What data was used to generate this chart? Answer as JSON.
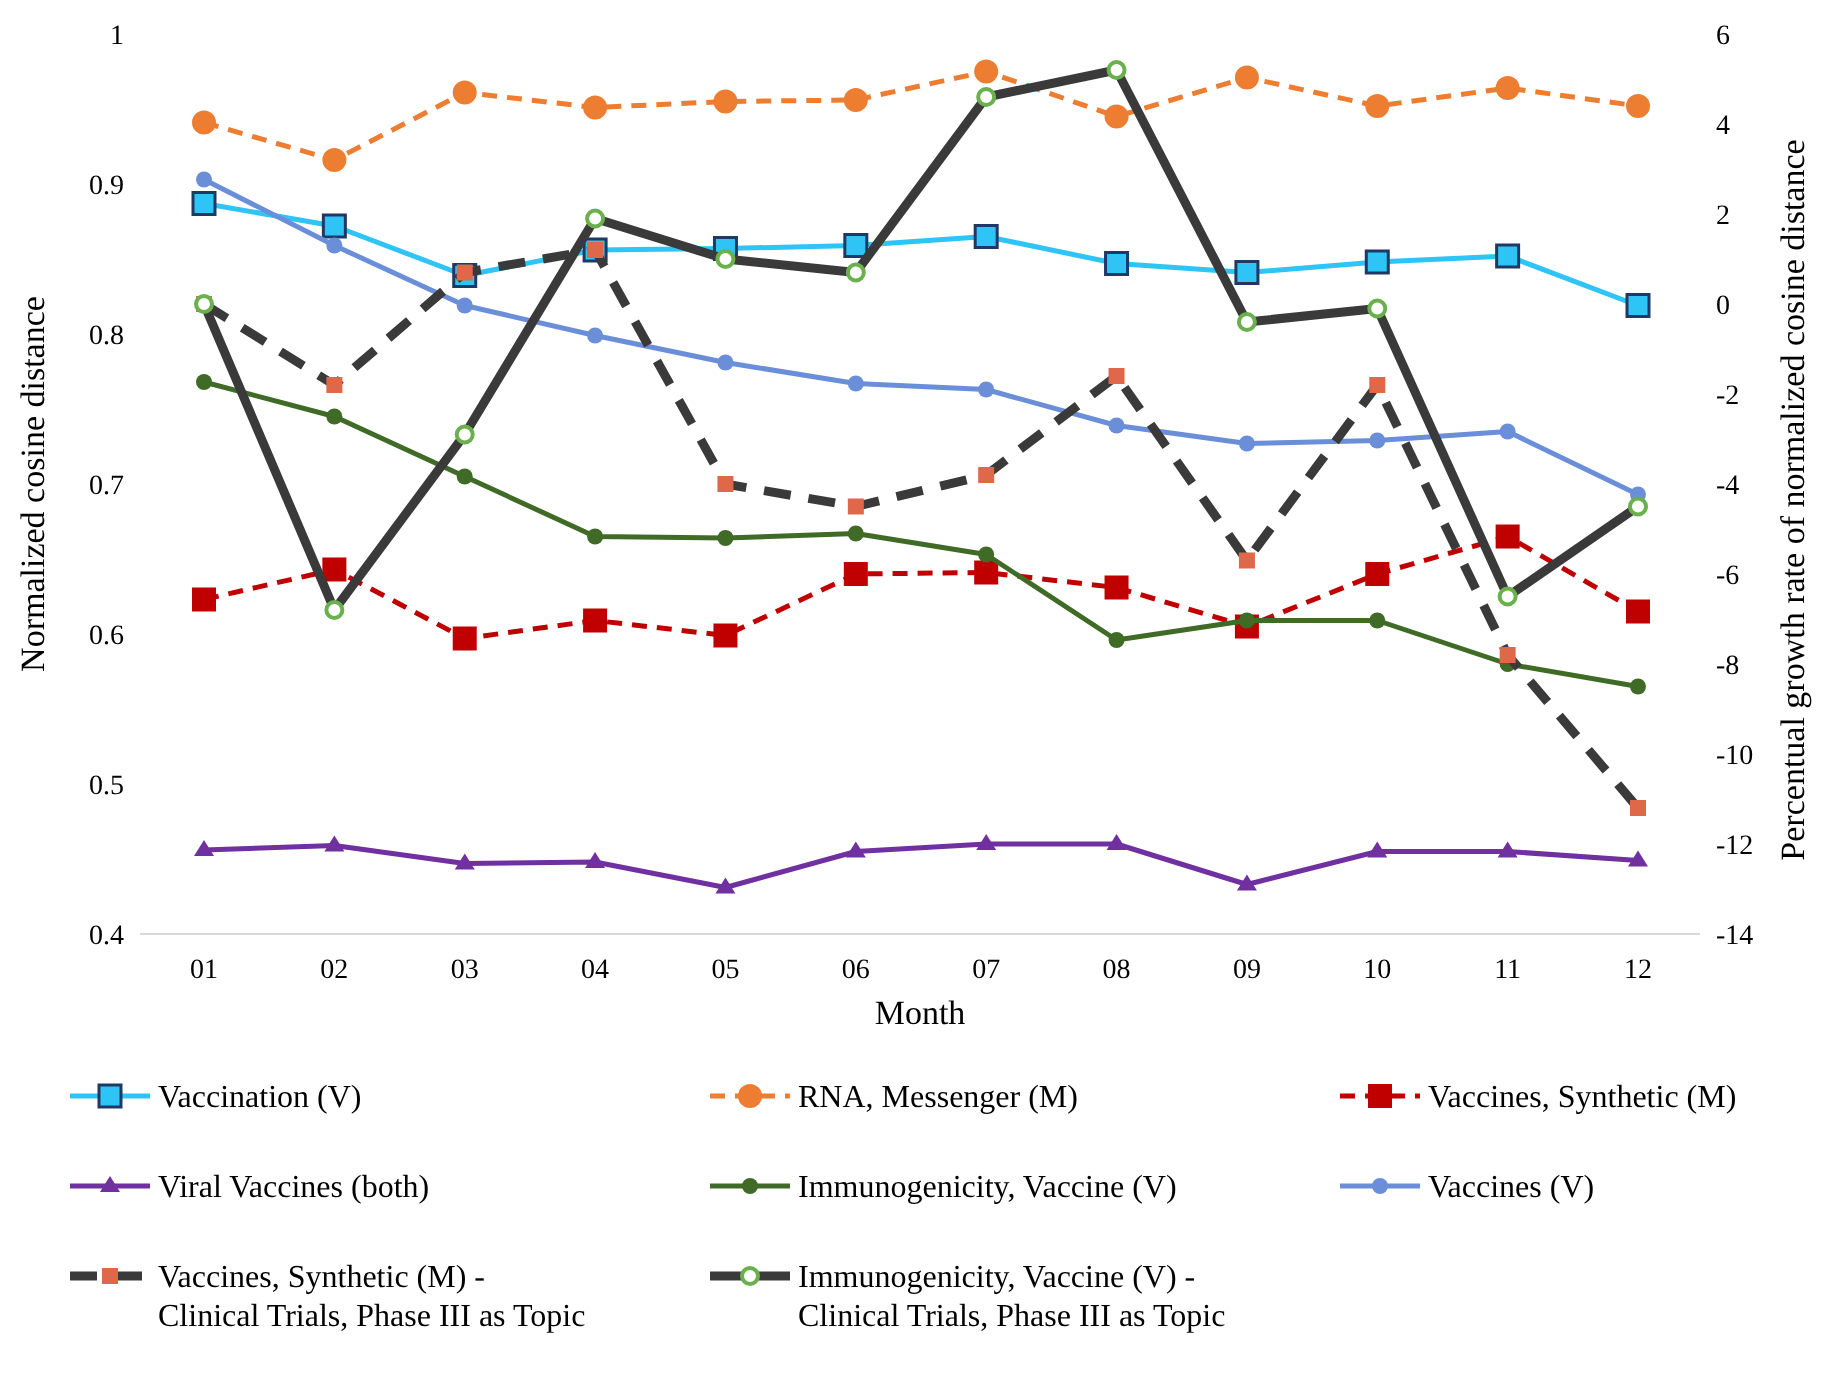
{
  "chart_data": {
    "type": "line",
    "xlabel": "Month",
    "ylabel": "Normalized cosine distance",
    "y2label": "Percentual growth rate of normalized cosine distance",
    "categories": [
      "01",
      "02",
      "03",
      "04",
      "05",
      "06",
      "07",
      "08",
      "09",
      "10",
      "11",
      "12"
    ],
    "ylim": [
      0.4,
      1
    ],
    "yticks": [
      0.4,
      0.5,
      0.6,
      0.7,
      0.8,
      0.9,
      1
    ],
    "y2lim": [
      -14,
      6
    ],
    "y2ticks": [
      -14,
      -12,
      -10,
      -8,
      -6,
      -4,
      -2,
      0,
      2,
      4,
      6
    ],
    "grid": false,
    "legend": "bottom",
    "series": [
      {
        "name": "Vaccination (V)",
        "color": "#2ec4f5",
        "marker": "square",
        "line_style": "solid",
        "values": [
          0.887,
          0.872,
          0.839,
          0.856,
          0.857,
          0.859,
          0.865,
          0.847,
          0.841,
          0.848,
          0.852,
          0.819
        ]
      },
      {
        "name": "RNA, Messenger (M)",
        "color": "#ed7d31",
        "marker": "circle",
        "line_style": "dashed",
        "values": [
          0.941,
          0.916,
          0.961,
          0.951,
          0.955,
          0.956,
          0.975,
          0.945,
          0.971,
          0.952,
          0.964,
          0.952
        ]
      },
      {
        "name": "Vaccines, Synthetic (M)",
        "color": "#c00000",
        "marker": "square",
        "line_style": "dashed",
        "values": [
          0.623,
          0.643,
          0.597,
          0.609,
          0.599,
          0.64,
          0.641,
          0.631,
          0.605,
          0.64,
          0.665,
          0.615
        ]
      },
      {
        "name": "Viral Vaccines (both)",
        "color": "#7030a0",
        "marker": "triangle",
        "line_style": "solid",
        "values": [
          0.456,
          0.459,
          0.447,
          0.448,
          0.431,
          0.455,
          0.46,
          0.46,
          0.433,
          0.455,
          0.455,
          0.449
        ]
      },
      {
        "name": "Immunogenicity, Vaccine (V)",
        "color": "#3f6b27",
        "marker": "circle",
        "line_style": "solid",
        "values": [
          0.768,
          0.745,
          0.705,
          0.665,
          0.664,
          0.667,
          0.653,
          0.596,
          0.609,
          0.609,
          0.58,
          0.565
        ]
      },
      {
        "name": "Vaccines (V)",
        "color": "#6a8fd8",
        "marker": "circle",
        "line_style": "solid",
        "values": [
          0.903,
          0.859,
          0.819,
          0.799,
          0.781,
          0.767,
          0.763,
          0.739,
          0.727,
          0.729,
          0.735,
          0.693
        ]
      },
      {
        "name": "Vaccines, Synthetic (M) - Clinical Trials, Phase III as Topic",
        "color": "#3a3a3a",
        "marker": "square",
        "line_style": "dashed",
        "axis": "y2",
        "values": [
          0,
          -1.8,
          0.7,
          1.2,
          -4.0,
          -4.5,
          -3.8,
          -1.6,
          -5.7,
          -1.8,
          -7.8,
          -11.2
        ]
      },
      {
        "name": "Immunogenicity, Vaccine (V) - Clinical Trials, Phase III as Topic",
        "color": "#3a3a3a",
        "marker": "circle",
        "line_style": "solid",
        "axis": "y2",
        "values": [
          0,
          -6.8,
          -2.9,
          1.9,
          1.0,
          0.7,
          4.6,
          5.2,
          -0.4,
          -0.1,
          -6.5,
          -4.5
        ]
      }
    ]
  }
}
